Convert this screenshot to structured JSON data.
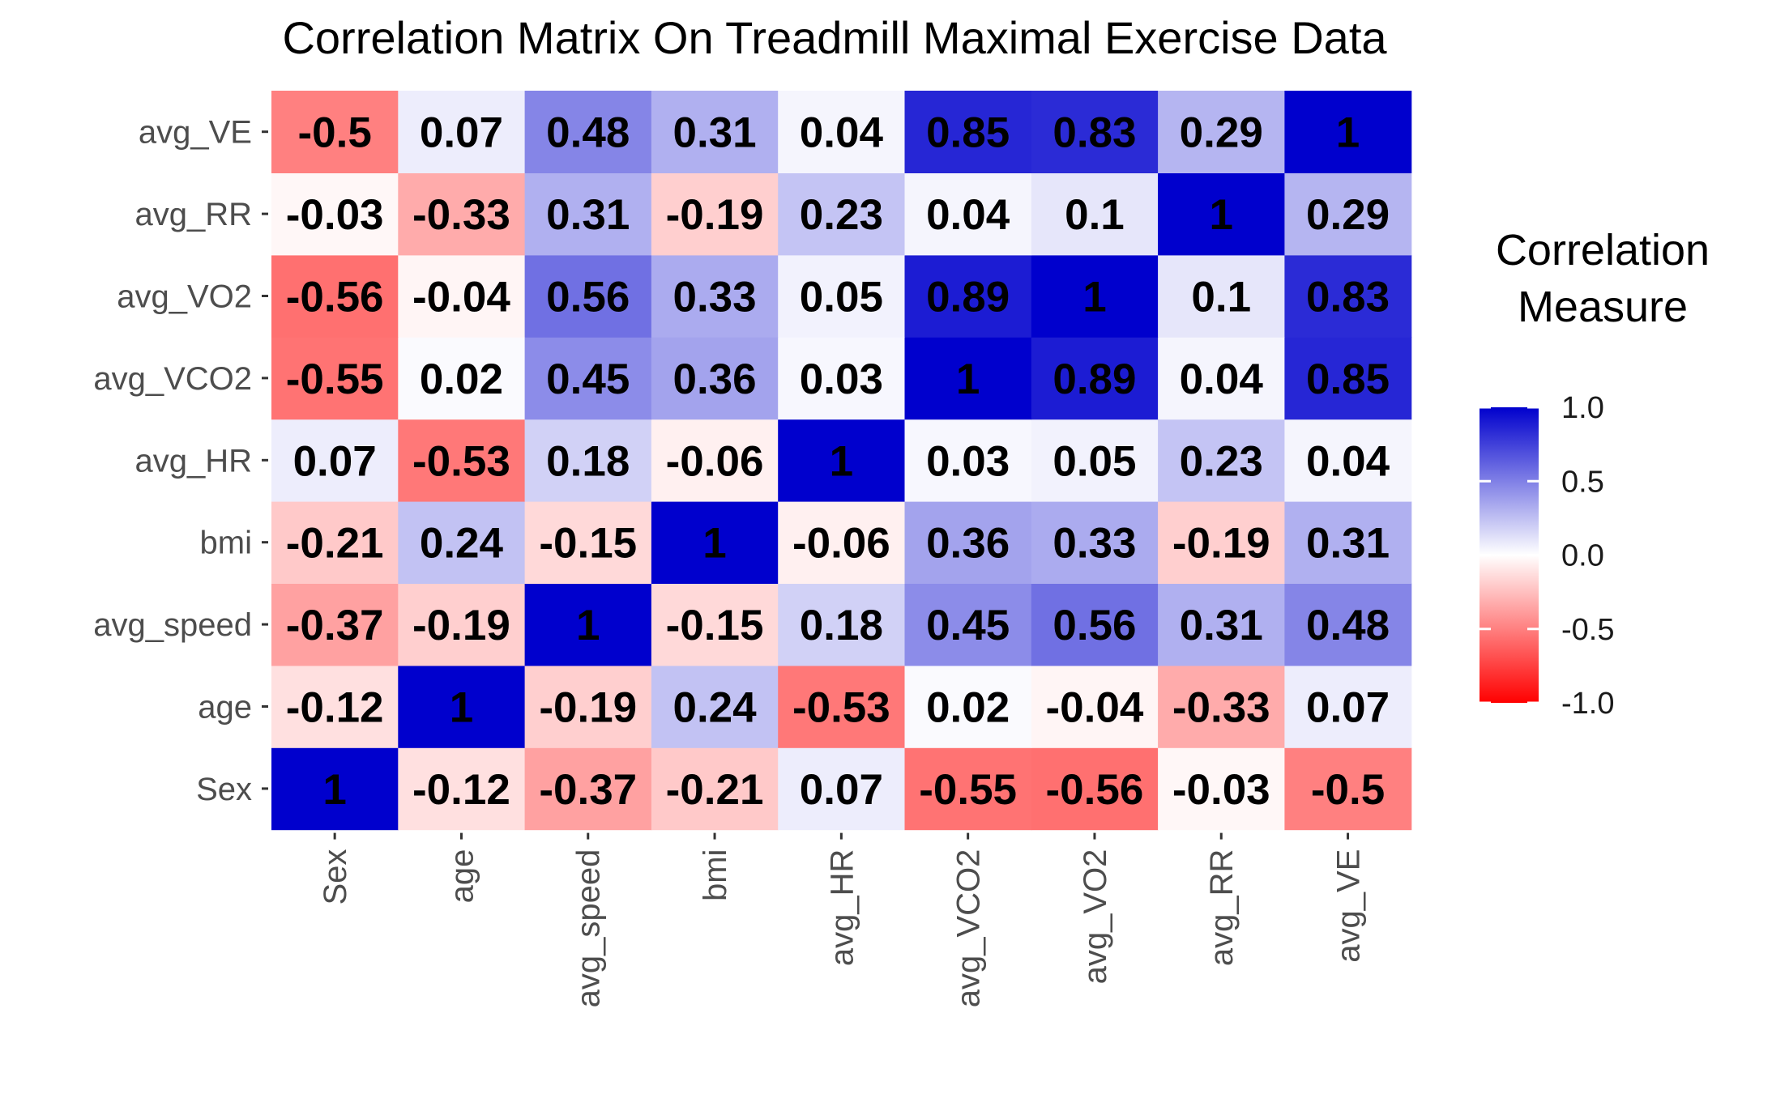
{
  "chart_data": {
    "type": "heatmap",
    "title": "Correlation Matrix On Treadmill Maximal Exercise Data",
    "xlabel": "",
    "ylabel": "",
    "variables": [
      "Sex",
      "age",
      "avg_speed",
      "bmi",
      "avg_HR",
      "avg_VCO2",
      "avg_VO2",
      "avg_RR",
      "avg_VE"
    ],
    "matrix": [
      [
        1,
        -0.12,
        -0.37,
        -0.21,
        0.07,
        -0.55,
        -0.56,
        -0.03,
        -0.5
      ],
      [
        -0.12,
        1,
        -0.19,
        0.24,
        -0.53,
        0.02,
        -0.04,
        -0.33,
        0.07
      ],
      [
        -0.37,
        -0.19,
        1,
        -0.15,
        0.18,
        0.45,
        0.56,
        0.31,
        0.48
      ],
      [
        -0.21,
        0.24,
        -0.15,
        1,
        -0.06,
        0.36,
        0.33,
        -0.19,
        0.31
      ],
      [
        0.07,
        -0.53,
        0.18,
        -0.06,
        1,
        0.03,
        0.05,
        0.23,
        0.04
      ],
      [
        -0.55,
        0.02,
        0.45,
        0.36,
        0.03,
        1,
        0.89,
        0.04,
        0.85
      ],
      [
        -0.56,
        -0.04,
        0.56,
        0.33,
        0.05,
        0.89,
        1,
        0.1,
        0.83
      ],
      [
        -0.03,
        -0.33,
        0.31,
        -0.19,
        0.23,
        0.04,
        0.1,
        1,
        0.29
      ],
      [
        -0.5,
        0.07,
        0.48,
        0.31,
        0.04,
        0.85,
        0.83,
        0.29,
        1
      ]
    ],
    "legend": {
      "title_lines": [
        "Correlation",
        "Measure"
      ],
      "limits": [
        -1,
        1
      ],
      "ticks": [
        1.0,
        0.5,
        0.0,
        -0.5,
        -1.0
      ],
      "tick_labels": [
        "1.0",
        "0.5",
        "0.0",
        "-0.5",
        "-1.0"
      ],
      "placement": "right"
    },
    "colors": {
      "low": "#ff0000",
      "mid": "#ffffff",
      "high": "#0000cd",
      "tick": "#333333",
      "axis_text": "#4d4d4d"
    }
  }
}
